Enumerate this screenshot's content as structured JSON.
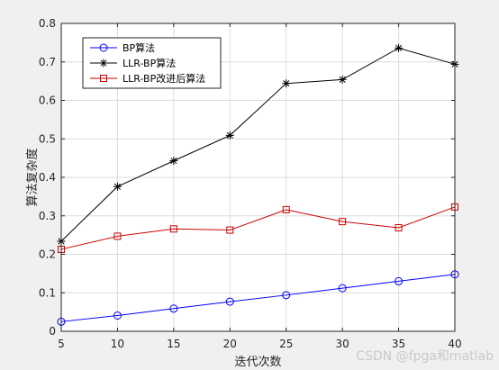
{
  "chart_data": {
    "type": "line",
    "title": "",
    "xlabel": "迭代次数",
    "ylabel": "算法复杂度",
    "x": [
      5,
      10,
      15,
      20,
      25,
      30,
      35,
      40
    ],
    "xlim": [
      5,
      40
    ],
    "ylim": [
      0,
      0.8
    ],
    "xticks": [
      "5",
      "10",
      "15",
      "20",
      "25",
      "30",
      "35",
      "40"
    ],
    "yticks": [
      "0",
      "0.1",
      "0.2",
      "0.3",
      "0.4",
      "0.5",
      "0.6",
      "0.7",
      "0.8"
    ],
    "grid": true,
    "legend_position": "top-left",
    "series": [
      {
        "name": "BP算法",
        "color": "#0000ff",
        "marker": "circle",
        "values": [
          0.025,
          0.041,
          0.059,
          0.077,
          0.094,
          0.112,
          0.13,
          0.148
        ]
      },
      {
        "name": "LLR-BP算法",
        "color": "#000000",
        "marker": "star",
        "values": [
          0.234,
          0.376,
          0.443,
          0.509,
          0.644,
          0.654,
          0.736,
          0.694
        ]
      },
      {
        "name": "LLR-BP改进后算法",
        "color": "#cc0000",
        "marker": "square",
        "values": [
          0.213,
          0.247,
          0.266,
          0.263,
          0.316,
          0.285,
          0.269,
          0.323
        ]
      }
    ]
  },
  "watermark": "CSDN @fpga和matlab"
}
